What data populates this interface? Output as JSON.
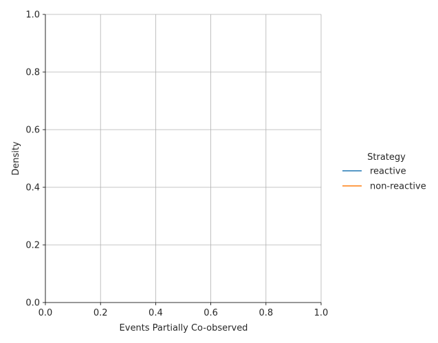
{
  "chart_data": {
    "type": "line",
    "title": "",
    "xlabel": "Events Partially Co-observed",
    "ylabel": "Density",
    "xlim": [
      0.0,
      1.0
    ],
    "ylim": [
      0.0,
      1.0
    ],
    "xticks": [
      "0.0",
      "0.2",
      "0.4",
      "0.6",
      "0.8",
      "1.0"
    ],
    "yticks": [
      "0.0",
      "0.2",
      "0.4",
      "0.6",
      "0.8",
      "1.0"
    ],
    "grid": true,
    "legend": {
      "title": "Strategy",
      "placement": "right",
      "entries": [
        {
          "label": "reactive",
          "color": "#1f77b4"
        },
        {
          "label": "non-reactive",
          "color": "#ff7f0e"
        }
      ]
    },
    "series": [
      {
        "name": "reactive",
        "color": "#1f77b4",
        "x": [],
        "y": []
      },
      {
        "name": "non-reactive",
        "color": "#ff7f0e",
        "x": [],
        "y": []
      }
    ]
  }
}
